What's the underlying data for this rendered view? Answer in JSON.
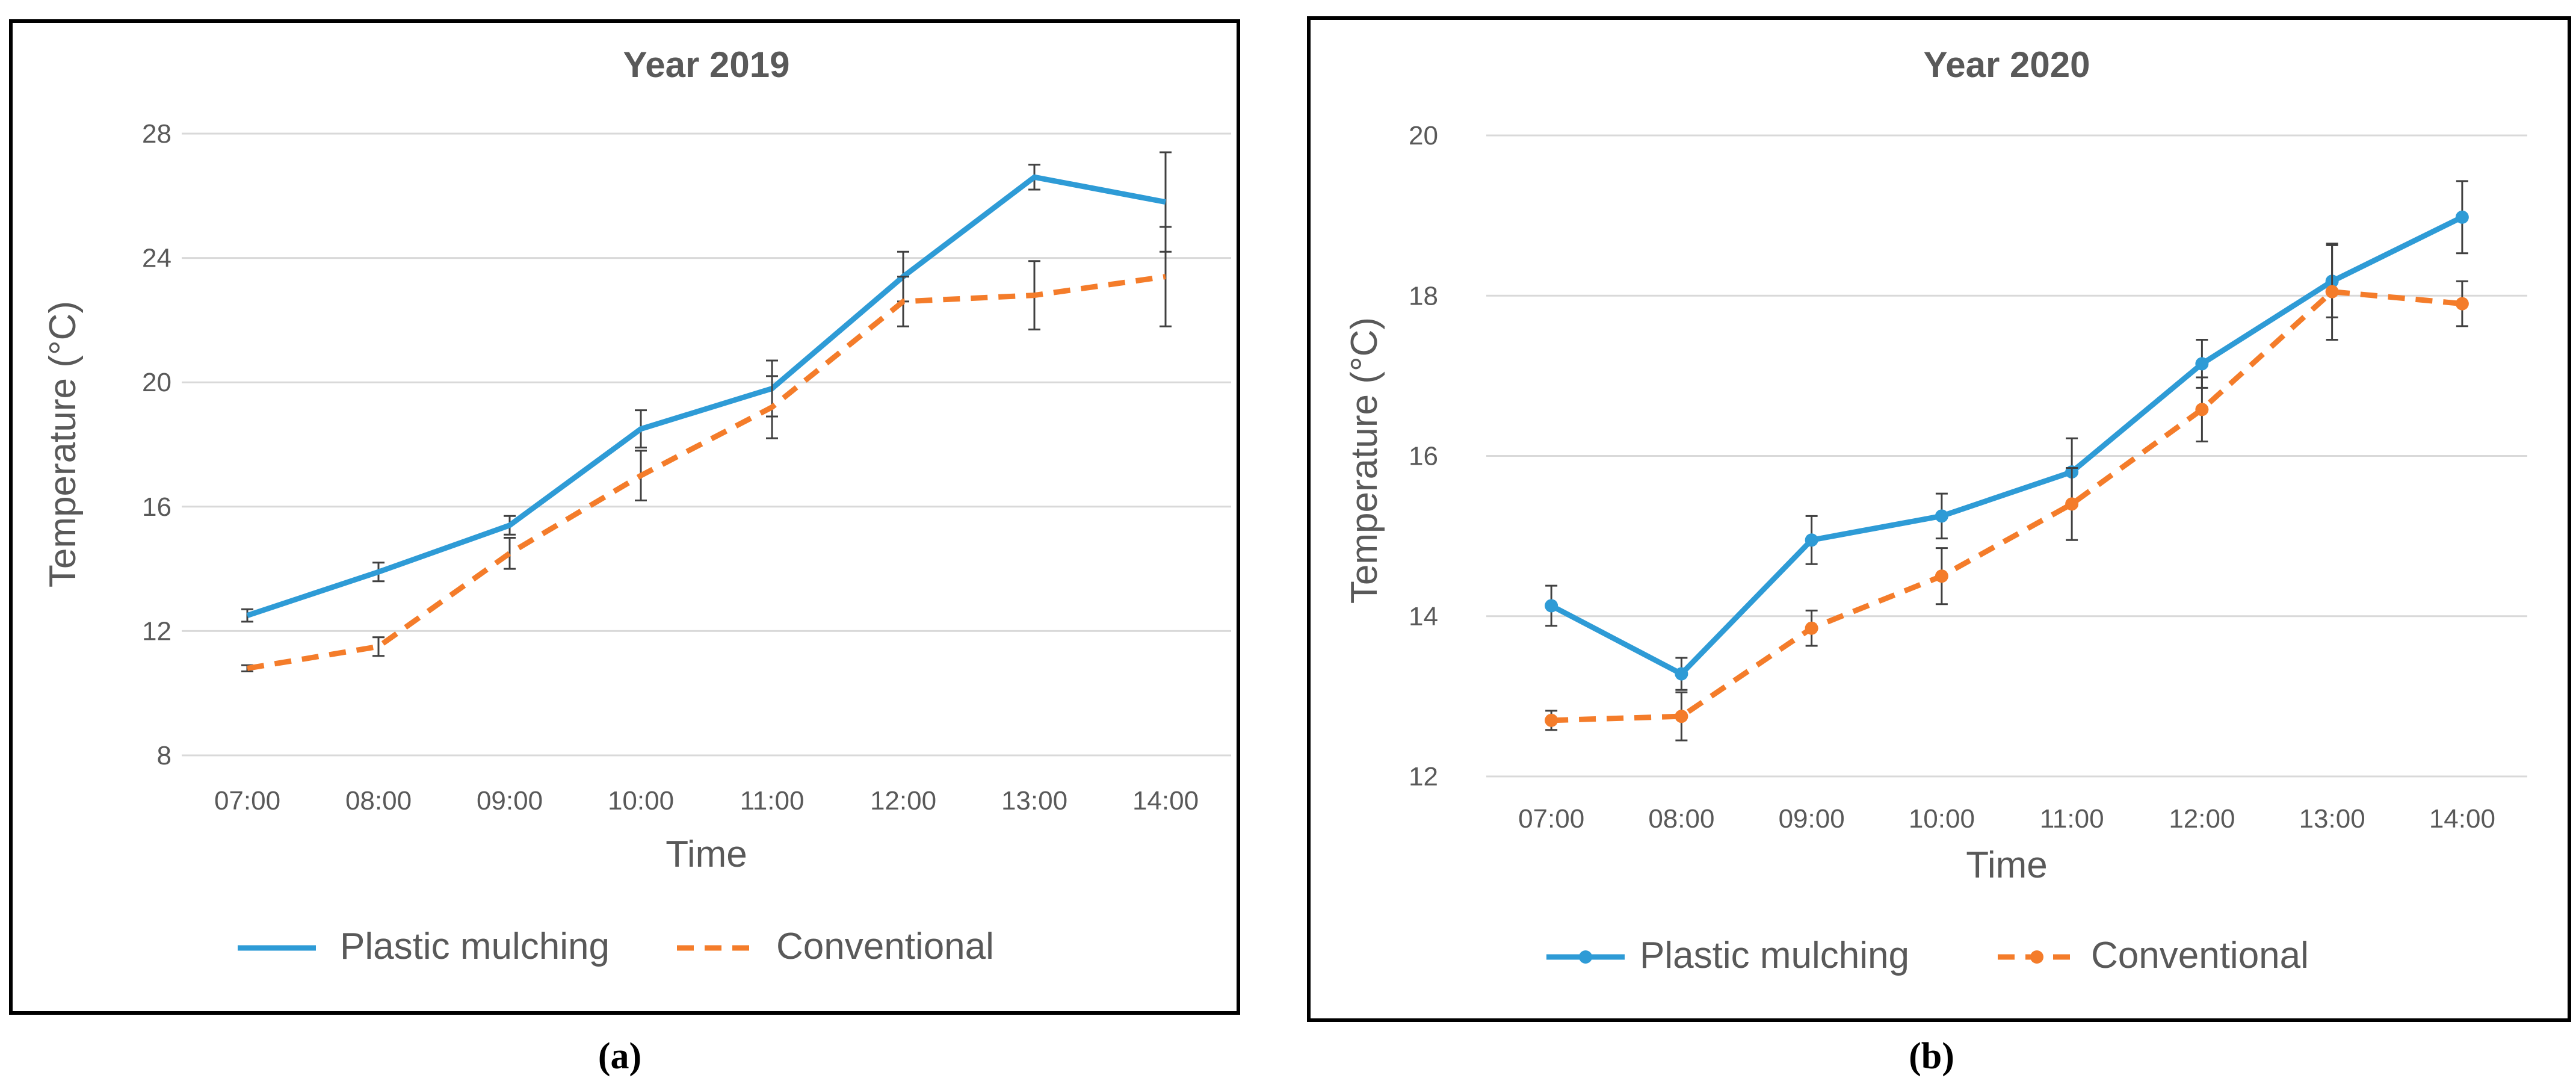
{
  "colors": {
    "plastic": "#2E9BD6",
    "conventional": "#F47C2A",
    "grid": "#d9d9d9",
    "axis_text": "#595959",
    "error_bar": "#404040",
    "frame": "#000000"
  },
  "chart_data": [
    {
      "type": "line",
      "panel_label": "(a)",
      "title": "Year 2019",
      "xlabel": "Time",
      "ylabel": "Temperature (°C)",
      "categories": [
        "07:00",
        "08:00",
        "09:00",
        "10:00",
        "11:00",
        "12:00",
        "13:00",
        "14:00"
      ],
      "ylim": [
        8,
        28
      ],
      "yticks": [
        "8",
        "12",
        "16",
        "20",
        "24",
        "28"
      ],
      "grid": true,
      "legend_position": "bottom",
      "series": [
        {
          "name": "Plastic mulching",
          "style": "solid",
          "markers": false,
          "values": [
            12.5,
            13.9,
            15.4,
            18.5,
            19.8,
            23.4,
            26.6,
            25.8
          ],
          "errors": [
            0.2,
            0.3,
            0.3,
            0.6,
            0.9,
            0.8,
            0.4,
            1.6
          ]
        },
        {
          "name": "Conventional",
          "style": "dashed",
          "markers": false,
          "values": [
            10.8,
            11.5,
            14.5,
            17.0,
            19.2,
            22.6,
            22.8,
            23.4
          ],
          "errors": [
            0.1,
            0.3,
            0.5,
            0.8,
            1.0,
            0.8,
            1.1,
            1.6
          ]
        }
      ]
    },
    {
      "type": "line",
      "panel_label": "(b)",
      "title": "Year 2020",
      "xlabel": "Time",
      "ylabel": "Temperature (°C)",
      "categories": [
        "07:00",
        "08:00",
        "09:00",
        "10:00",
        "11:00",
        "12:00",
        "13:00",
        "14:00"
      ],
      "ylim": [
        12,
        20
      ],
      "yticks": [
        "12",
        "14",
        "16",
        "18",
        "20"
      ],
      "grid": true,
      "legend_position": "bottom",
      "series": [
        {
          "name": "Plastic mulching",
          "style": "solid",
          "markers": true,
          "values": [
            14.13,
            13.28,
            14.95,
            15.25,
            15.8,
            17.15,
            18.18,
            18.98
          ],
          "errors": [
            0.25,
            0.2,
            0.3,
            0.28,
            0.42,
            0.3,
            0.45,
            0.45
          ]
        },
        {
          "name": "Conventional",
          "style": "dashed",
          "markers": true,
          "values": [
            12.7,
            12.75,
            13.85,
            14.5,
            15.4,
            16.58,
            18.05,
            17.9
          ],
          "errors": [
            0.12,
            0.3,
            0.22,
            0.35,
            0.45,
            0.4,
            0.6,
            0.28
          ]
        }
      ]
    }
  ]
}
